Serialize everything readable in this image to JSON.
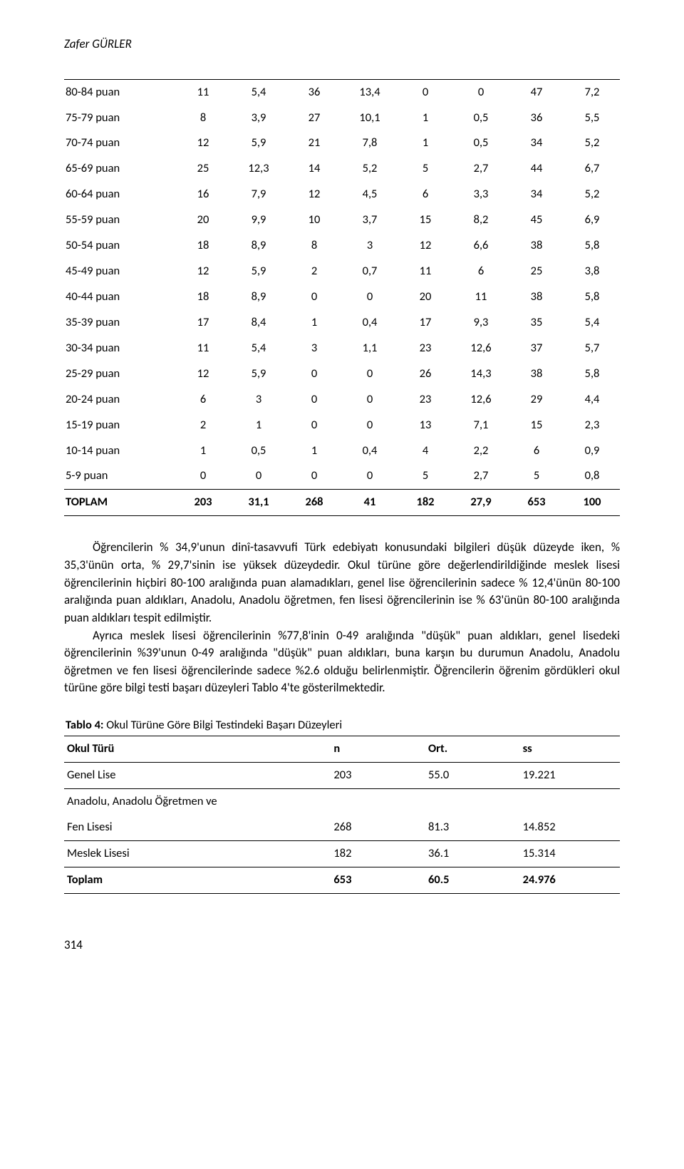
{
  "author": "Zafer GÜRLER",
  "table1": {
    "col_widths_pct": [
      20,
      10,
      10,
      10,
      10,
      10,
      10,
      10,
      10
    ],
    "rows": [
      [
        "80-84 puan",
        "11",
        "5,4",
        "36",
        "13,4",
        "0",
        "0",
        "47",
        "7,2"
      ],
      [
        "75-79 puan",
        "8",
        "3,9",
        "27",
        "10,1",
        "1",
        "0,5",
        "36",
        "5,5"
      ],
      [
        "70-74 puan",
        "12",
        "5,9",
        "21",
        "7,8",
        "1",
        "0,5",
        "34",
        "5,2"
      ],
      [
        "65-69 puan",
        "25",
        "12,3",
        "14",
        "5,2",
        "5",
        "2,7",
        "44",
        "6,7"
      ],
      [
        "60-64 puan",
        "16",
        "7,9",
        "12",
        "4,5",
        "6",
        "3,3",
        "34",
        "5,2"
      ],
      [
        "55-59 puan",
        "20",
        "9,9",
        "10",
        "3,7",
        "15",
        "8,2",
        "45",
        "6,9"
      ],
      [
        "50-54 puan",
        "18",
        "8,9",
        "8",
        "3",
        "12",
        "6,6",
        "38",
        "5,8"
      ],
      [
        "45-49 puan",
        "12",
        "5,9",
        "2",
        "0,7",
        "11",
        "6",
        "25",
        "3,8"
      ],
      [
        "40-44 puan",
        "18",
        "8,9",
        "0",
        "0",
        "20",
        "11",
        "38",
        "5,8"
      ],
      [
        "35-39 puan",
        "17",
        "8,4",
        "1",
        "0,4",
        "17",
        "9,3",
        "35",
        "5,4"
      ],
      [
        "30-34 puan",
        "11",
        "5,4",
        "3",
        "1,1",
        "23",
        "12,6",
        "37",
        "5,7"
      ],
      [
        "25-29 puan",
        "12",
        "5,9",
        "0",
        "0",
        "26",
        "14,3",
        "38",
        "5,8"
      ],
      [
        "20-24 puan",
        "6",
        "3",
        "0",
        "0",
        "23",
        "12,6",
        "29",
        "4,4"
      ],
      [
        "15-19 puan",
        "2",
        "1",
        "0",
        "0",
        "13",
        "7,1",
        "15",
        "2,3"
      ],
      [
        "10-14 puan",
        "1",
        "0,5",
        "1",
        "0,4",
        "4",
        "2,2",
        "6",
        "0,9"
      ],
      [
        "5-9 puan",
        "0",
        "0",
        "0",
        "0",
        "5",
        "2,7",
        "5",
        "0,8"
      ]
    ],
    "total_label": "TOPLAM",
    "total": [
      "203",
      "31,1",
      "268",
      "41",
      "182",
      "27,9",
      "653",
      "100"
    ]
  },
  "paragraphs": [
    "Öğrencilerin % 34,9'unun dinî-tasavvufi Türk edebiyatı konusundaki bilgileri düşük düzeyde iken, % 35,3'ünün orta, % 29,7'sinin ise yüksek düzeydedir. Okul türüne göre değerlendirildiğinde meslek lisesi öğrencilerinin hiçbiri 80-100 aralığında puan alamadıkları, genel lise öğrencilerinin sadece % 12,4'ünün 80-100 aralığında puan aldıkları, Anadolu, Anadolu öğretmen, fen lisesi öğrencilerinin ise % 63'ünün 80-100 aralığında puan aldıkları tespit edilmiştir.",
    "Ayrıca meslek lisesi öğrencilerinin %77,8'inin 0-49 aralığında \"düşük\" puan aldıkları, genel lisedeki öğrencilerinin %39'unun 0-49 aralığında \"düşük\" puan aldıkları, buna karşın bu durumun Anadolu, Anadolu öğretmen ve fen lisesi öğrencilerinde sadece %2.6 olduğu belirlenmiştir. Öğrencilerin öğrenim gördükleri okul türüne göre bilgi testi başarı düzeyleri Tablo 4'te gösterilmektedir."
  ],
  "table2": {
    "caption_bold": "Tablo 4:",
    "caption_rest": " Okul Türüne Göre Bilgi Testindeki Başarı Düzeyleri",
    "headers": [
      "Okul Türü",
      "n",
      "Ort.",
      "ss"
    ],
    "col_widths_pct": [
      48,
      17,
      17,
      18
    ],
    "rows": [
      {
        "cells": [
          "Genel Lise",
          "203",
          "55.0",
          "19.221"
        ],
        "rule": true
      },
      {
        "cells": [
          "Anadolu, Anadolu Öğretmen ve",
          "",
          "",
          ""
        ],
        "rule": false
      },
      {
        "cells": [
          "Fen Lisesi",
          "268",
          "81.3",
          "14.852"
        ],
        "rule": true
      },
      {
        "cells": [
          "Meslek Lisesi",
          "182",
          "36.1",
          "15.314"
        ],
        "rule": true
      }
    ],
    "total": [
      "Toplam",
      "653",
      "60.5",
      "24.976"
    ]
  },
  "page_number": "314"
}
